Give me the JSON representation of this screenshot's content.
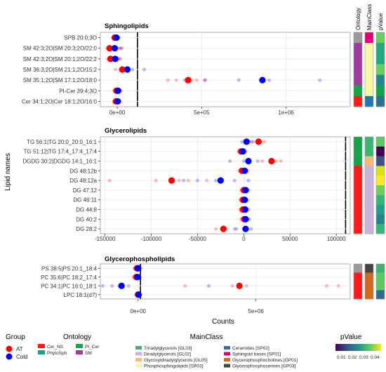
{
  "colors": {
    "AT": "#ff0000",
    "Cold": "#0000ff",
    "panel_bg": "#ffffff",
    "grid": "#ebebeb",
    "border": "#333333",
    "vline": "#000000"
  },
  "chart_data": {
    "type": "scatter",
    "y_axis_title": "Lipid names",
    "x_axis_title": "Counts",
    "annotation_columns": [
      "Ontology",
      "MainClass",
      "pValue"
    ],
    "panels": [
      {
        "title": "Sphingolipids",
        "xlim": [
          -100000,
          1380000
        ],
        "x_ticks": [
          0,
          500000,
          1000000
        ],
        "x_tick_labels": [
          "0e+00",
          "5e+05",
          "1e+06"
        ],
        "vline": 120000,
        "rows": [
          {
            "label": "SPB 20:0;3O",
            "ontology": "#9b9b9b",
            "mainclass": "#e2007a",
            "pvalue": "#6bcd5a",
            "AT": {
              "mean": -15000,
              "reps": [
                -25000,
                -8000
              ]
            },
            "Cold": {
              "mean": -5000,
              "reps": [
                -20000,
                5000,
                10000
              ]
            }
          },
          {
            "label": "SM 42:3;2O|SM 20:3;2O/22:0",
            "ontology": "#a03ca0",
            "mainclass": "#f7f5a6",
            "pvalue": "#23a884",
            "AT": {
              "mean": -45000,
              "reps": [
                -60000,
                -35000,
                15000,
                30000
              ]
            },
            "Cold": {
              "mean": -15000,
              "reps": [
                -30000,
                0,
                20000
              ]
            }
          },
          {
            "label": "SM 42:3;2O|SM 20:1;2O/22:2",
            "ontology": "#a03ca0",
            "mainclass": "#f7f5a6",
            "pvalue": "#23a884",
            "AT": {
              "mean": -40000,
              "reps": [
                -55000,
                -30000,
                5000,
                20000
              ]
            },
            "Cold": {
              "mean": -12000,
              "reps": [
                -25000,
                10000
              ]
            }
          },
          {
            "label": "SM 36:3;2O|SM 21:1;2O/15:2",
            "ontology": "#a03ca0",
            "mainclass": "#f7f5a6",
            "pvalue": "#6bcd5a",
            "AT": {
              "mean": 30000,
              "reps": [
                -10000,
                20000,
                45000
              ]
            },
            "Cold": {
              "mean": 60000,
              "reps": [
                30000,
                90000,
                160000
              ]
            }
          },
          {
            "label": "SM 35:1;2O|SM 17:1;2O/18:0",
            "ontology": "#a03ca0",
            "mainclass": "#f7f5a6",
            "pvalue": "#24868e",
            "AT": {
              "mean": 420000,
              "reps": [
                300000,
                350000,
                440000,
                470000,
                520000
              ]
            },
            "Cold": {
              "mean": 860000,
              "reps": [
                400000,
                520000,
                720000,
                900000,
                1200000
              ]
            }
          },
          {
            "label": "PI-Cer 39:4;3O",
            "ontology": "#16a34a",
            "mainclass": "#f7f5a6",
            "pvalue": "#16a34a",
            "AT": {
              "mean": -5000,
              "reps": [
                -20000,
                10000
              ]
            },
            "Cold": {
              "mean": 5000,
              "reps": [
                -10000,
                20000
              ]
            }
          },
          {
            "label": "Cer 34:1;2O|Cer 18:1;2O/16:0",
            "ontology": "#ff1a1a",
            "mainclass": "#1f78b4",
            "pvalue": "#2f6e8e",
            "AT": {
              "mean": -8000,
              "reps": [
                -20000,
                5000
              ]
            },
            "Cold": {
              "mean": 3000,
              "reps": [
                -10000,
                15000
              ]
            }
          }
        ]
      },
      {
        "title": "Glycerolipids",
        "xlim": [
          -155000,
          115000
        ],
        "x_ticks": [
          -150000,
          -100000,
          -50000,
          0,
          50000,
          100000
        ],
        "x_tick_labels": [
          "-150000",
          "-100000",
          "-50000",
          "0",
          "50000",
          "100000"
        ],
        "vline": 110000,
        "rows": [
          {
            "label": "TG 56:1|TG 20:0_20:0_16:1",
            "ontology": "#16a34a",
            "mainclass": "#3cb371",
            "pvalue": "#5ec962",
            "AT": {
              "mean": 16000,
              "reps": [
                8000,
                14000,
                22000
              ]
            },
            "Cold": {
              "mean": 3000,
              "reps": [
                -2000,
                6000,
                10000
              ]
            }
          },
          {
            "label": "TG 51:12|TG 17:4_17:4_17:4",
            "ontology": "#16a34a",
            "mainclass": "#3cb371",
            "pvalue": "#440154",
            "AT": {
              "mean": -3000,
              "reps": [
                -6000,
                1000
              ]
            },
            "Cold": {
              "mean": -1000,
              "reps": [
                -4000,
                2000
              ]
            }
          },
          {
            "label": "DGDG 30:2|DGDG 14:1_16:1",
            "ontology": "#16a34a",
            "mainclass": "#f5b97a",
            "pvalue": "#3b528b",
            "AT": {
              "mean": 30000,
              "reps": [
                20000,
                35000,
                40000
              ]
            },
            "Cold": {
              "mean": 5000,
              "reps": [
                -15000,
                0,
                15000
              ]
            }
          },
          {
            "label": "DG 48:12b",
            "ontology": "#ff1a1a",
            "mainclass": "#c9b3dd",
            "pvalue": "#d8e219",
            "AT": {
              "mean": -2000,
              "reps": [
                -5000,
                1000
              ]
            },
            "Cold": {
              "mean": 1000,
              "reps": [
                -2000,
                4000
              ]
            }
          },
          {
            "label": "DG 48:12a",
            "ontology": "#ff1a1a",
            "mainclass": "#c9b3dd",
            "pvalue": "#fde725",
            "AT": {
              "mean": -78000,
              "reps": [
                -145000,
                -95000,
                -70000,
                -60000,
                -40000
              ]
            },
            "Cold": {
              "mean": -25000,
              "reps": [
                -65000,
                -50000,
                -30000,
                -10000,
                5000
              ]
            }
          },
          {
            "label": "DG 47:12",
            "ontology": "#ff1a1a",
            "mainclass": "#c9b3dd",
            "pvalue": "#6ece58",
            "AT": {
              "mean": 0,
              "reps": [
                -3000,
                3000
              ]
            },
            "Cold": {
              "mean": 2000,
              "reps": [
                -1000,
                5000
              ]
            }
          },
          {
            "label": "DG 46:11",
            "ontology": "#ff1a1a",
            "mainclass": "#c9b3dd",
            "pvalue": "#35b779",
            "AT": {
              "mean": -1000,
              "reps": [
                -4000,
                2000
              ]
            },
            "Cold": {
              "mean": 1000,
              "reps": [
                -2000,
                4000
              ]
            }
          },
          {
            "label": "DG 44:8",
            "ontology": "#ff1a1a",
            "mainclass": "#c9b3dd",
            "pvalue": "#1f9e89",
            "AT": {
              "mean": -1000,
              "reps": [
                -4000,
                2000
              ]
            },
            "Cold": {
              "mean": 1500,
              "reps": [
                -2000,
                5000
              ]
            }
          },
          {
            "label": "DG 40:2",
            "ontology": "#ff1a1a",
            "mainclass": "#c9b3dd",
            "pvalue": "#26828e",
            "AT": {
              "mean": 500,
              "reps": [
                -3000,
                4000
              ]
            },
            "Cold": {
              "mean": 2000,
              "reps": [
                -1000,
                6000
              ]
            }
          },
          {
            "label": "DG 28:2",
            "ontology": "#ff1a1a",
            "mainclass": "#c9b3dd",
            "pvalue": "#35b779",
            "AT": {
              "mean": -22000,
              "reps": [
                -30000,
                -20000,
                -10000
              ]
            },
            "Cold": {
              "mean": 2000,
              "reps": [
                -8000,
                0,
                8000
              ]
            }
          }
        ]
      },
      {
        "title": "Glycerophospholipids",
        "xlim": [
          -1600000,
          9000000
        ],
        "x_ticks": [
          0,
          5000000
        ],
        "x_tick_labels": [
          "0e+00",
          "5e+06"
        ],
        "vline": 100000,
        "rows": [
          {
            "label": "PS 38:5|PS 20:1_18:4",
            "ontology": "#9b9b9b",
            "mainclass": "#444444",
            "pvalue": "#3cb371",
            "AT": {
              "mean": -50000,
              "reps": [
                -150000,
                50000
              ]
            },
            "Cold": {
              "mean": 0,
              "reps": [
                -100000,
                100000
              ]
            }
          },
          {
            "label": "PC 35:6|PC 18:2_17:4",
            "ontology": "#ff1a1a",
            "mainclass": "#d2691e",
            "pvalue": "#5ec962",
            "AT": {
              "mean": -80000,
              "reps": [
                -180000,
                20000
              ]
            },
            "Cold": {
              "mean": -20000,
              "reps": [
                -120000,
                80000
              ]
            }
          },
          {
            "label": "PC 34:1|PC 16:0_18:1",
            "ontology": "#ff1a1a",
            "mainclass": "#d2691e",
            "pvalue": "#5ec962",
            "AT": {
              "mean": 4300000,
              "reps": [
                2000000,
                4000000,
                4600000,
                8000000,
                8500000
              ]
            },
            "Cold": {
              "mean": -700000,
              "reps": [
                -1500000,
                -1100000,
                -800000,
                -400000,
                3000000
              ]
            }
          },
          {
            "label": "LPC 18:1(d7)",
            "ontology": "#ff1a1a",
            "mainclass": "#d2691e",
            "pvalue": "#31688e",
            "AT": {
              "mean": 0,
              "reps": [
                -100000,
                100000
              ]
            },
            "Cold": {
              "mean": 20000,
              "reps": [
                -50000,
                80000
              ]
            }
          }
        ]
      }
    ]
  },
  "legend": {
    "group": {
      "title": "Group",
      "items": [
        {
          "label": "AT",
          "color": "#ff0000"
        },
        {
          "label": "Cold",
          "color": "#0000ff"
        }
      ]
    },
    "ontology": {
      "title": "Ontology",
      "items": [
        {
          "label": "Cer_NS",
          "color": "#ff1a1a"
        },
        {
          "label": "PI_Cer",
          "color": "#16a34a"
        },
        {
          "label": "PhytoSph",
          "color": "#1f9e89"
        },
        {
          "label": "SM",
          "color": "#a03ca0"
        }
      ]
    },
    "mainclass": {
      "title": "MainClass",
      "items": [
        {
          "label": "Triradylglycerols [GL03]",
          "color": "#3cb371"
        },
        {
          "label": "Ceramides [SP02]",
          "color": "#1f78b4"
        },
        {
          "label": "Diradylglycerols [GL02]",
          "color": "#c9b3dd"
        },
        {
          "label": "Sphingoid bases [SP01]",
          "color": "#e2007a"
        },
        {
          "label": "Glycosyldiradylglycerols [GL05]",
          "color": "#f5b97a"
        },
        {
          "label": "Glycerophosphocholines [GP01]",
          "color": "#d2691e"
        },
        {
          "label": "Phosphosphingolipids [SP03]",
          "color": "#f7f5a6"
        },
        {
          "label": "Glycerophosphoserines [GP03]",
          "color": "#444444"
        }
      ]
    },
    "pvalue": {
      "title": "pValue",
      "tick_labels": [
        "0.01",
        "0.02",
        "0.03",
        "0.04"
      ],
      "gradient": [
        "#440154",
        "#3b528b",
        "#21908d",
        "#5dc863",
        "#fde725"
      ]
    }
  }
}
